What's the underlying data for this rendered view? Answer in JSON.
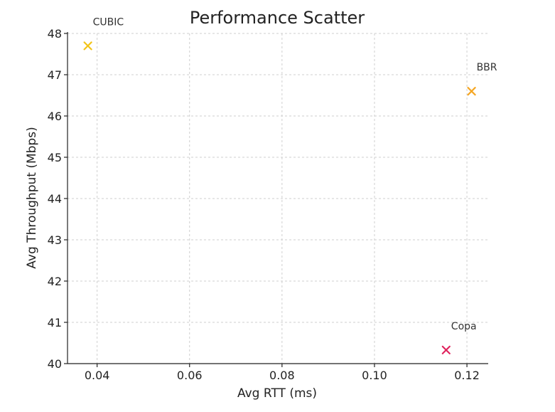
{
  "chart_data": {
    "type": "scatter",
    "title": "Performance Scatter",
    "xlabel": "Avg RTT (ms)",
    "ylabel": "Avg Throughput (Mbps)",
    "xlim": [
      0.0336,
      0.1246
    ],
    "ylim": [
      40,
      48
    ],
    "xticks": [
      "0.04",
      "0.06",
      "0.08",
      "0.10",
      "0.12"
    ],
    "xtick_values": [
      0.04,
      0.06,
      0.08,
      0.1,
      0.12
    ],
    "yticks": [
      "40",
      "41",
      "42",
      "43",
      "44",
      "45",
      "46",
      "47",
      "48"
    ],
    "ytick_values": [
      40,
      41,
      42,
      43,
      44,
      45,
      46,
      47,
      48
    ],
    "grid": true,
    "marker": "x",
    "points": [
      {
        "label": "CUBIC",
        "x": 0.038,
        "y": 47.7,
        "color": "#f2c418"
      },
      {
        "label": "BBR",
        "x": 0.121,
        "y": 46.6,
        "color": "#f5a623"
      },
      {
        "label": "Copa",
        "x": 0.1155,
        "y": 40.33,
        "color": "#e0245e"
      }
    ]
  }
}
